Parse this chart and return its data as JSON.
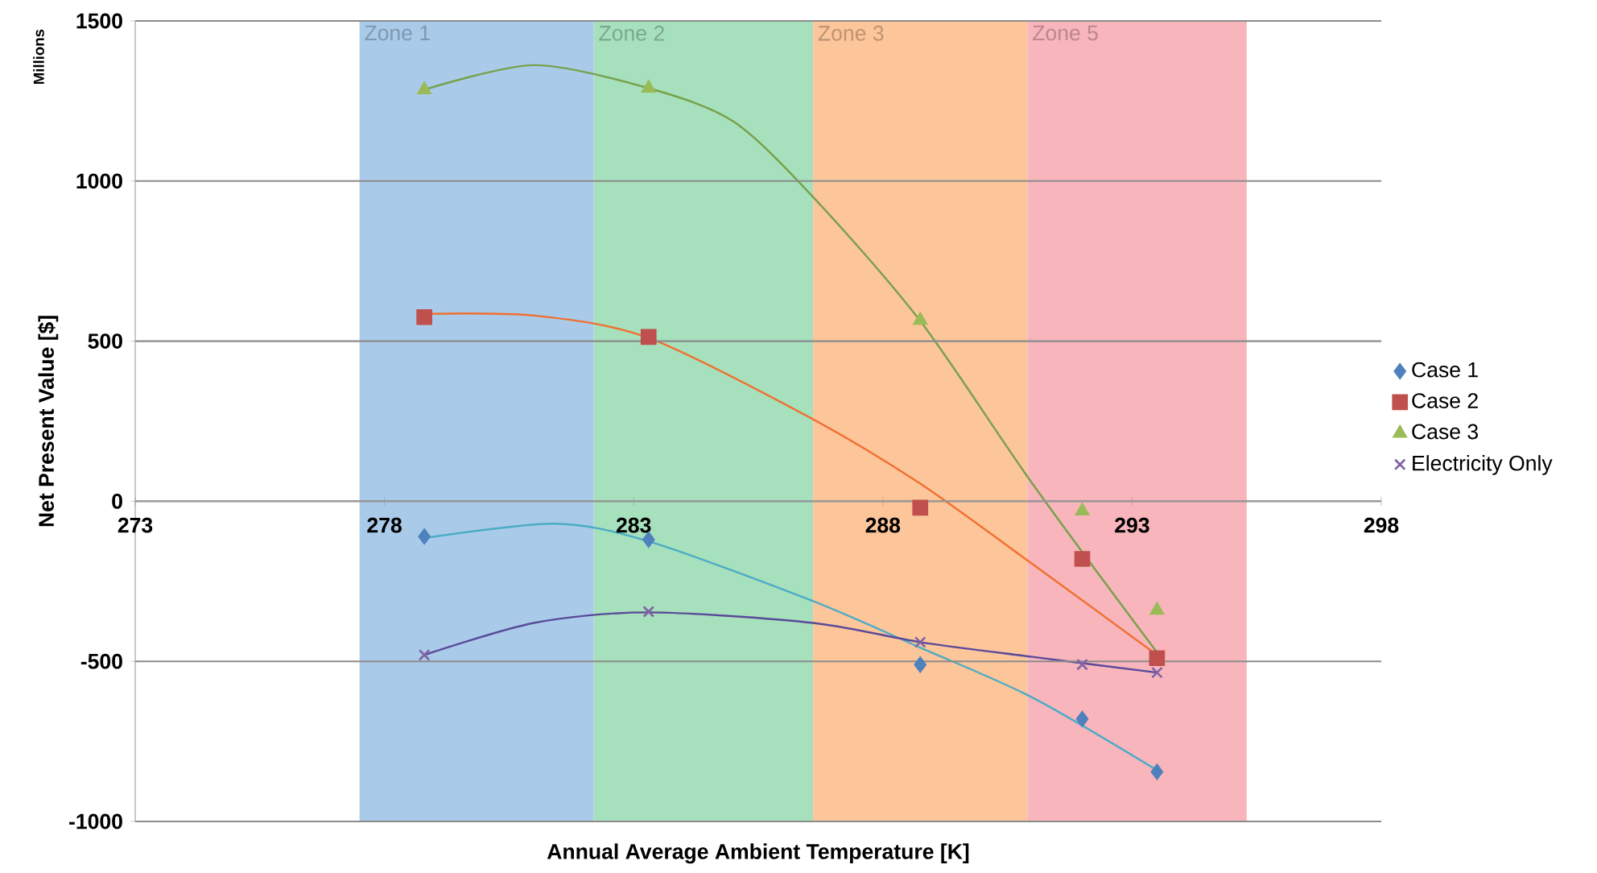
{
  "chart_data": {
    "type": "scatter",
    "xlabel": "Annual Average Ambient Temperature [K]",
    "ylabel": "Net Present Value [$]",
    "annotations": [
      "Millions"
    ],
    "xlim": [
      273,
      298
    ],
    "ylim": [
      -1000,
      1500
    ],
    "xticks": [
      273,
      278,
      283,
      288,
      293,
      298
    ],
    "yticks": [
      -1000,
      -500,
      0,
      500,
      1000,
      1500
    ],
    "grid": "y",
    "legend": "right",
    "bands": [
      {
        "axis": "x",
        "from": 277.5,
        "to": 282.2,
        "label": "Zone 1",
        "color": "#a9cbe9"
      },
      {
        "axis": "x",
        "from": 282.2,
        "to": 286.6,
        "label": "Zone 2",
        "color": "#a6e0bc"
      },
      {
        "axis": "x",
        "from": 286.6,
        "to": 290.9,
        "label": "Zone 3",
        "color": "#fcc59a"
      },
      {
        "axis": "x",
        "from": 290.9,
        "to": 295.3,
        "label": "Zone 5",
        "color": "#f8b5bc"
      }
    ],
    "series": [
      {
        "name": "Case 1",
        "color": "#4f81bd",
        "marker": "diamond",
        "x": [
          278.8,
          283.3,
          288.75,
          292,
          293.5
        ],
        "values": [
          -110,
          -120,
          -510,
          -680,
          -845
        ]
      },
      {
        "name": "Case 2",
        "color": "#c0504d",
        "marker": "square",
        "x": [
          278.8,
          283.3,
          288.75,
          292,
          293.5
        ],
        "values": [
          575,
          513,
          -20,
          -180,
          -490
        ]
      },
      {
        "name": "Case 3",
        "color": "#9bbb59",
        "marker": "triangle",
        "x": [
          278.8,
          283.3,
          288.75,
          292,
          293.5
        ],
        "values": [
          1285,
          1290,
          565,
          -30,
          -340
        ]
      },
      {
        "name": "Electricity Only",
        "color": "#8064a2",
        "marker": "cross",
        "x": [
          278.8,
          283.3,
          288.75,
          292,
          293.5
        ],
        "values": [
          -480,
          -345,
          -440,
          -510,
          -535
        ]
      },
      {
        "type": "line",
        "color": "#4bacc6",
        "x": [
          278.8,
          281.4,
          283.3,
          286.6,
          288.75,
          291,
          293.5
        ],
        "values": [
          -115,
          -70,
          -125,
          -312,
          -457,
          -613,
          -840
        ]
      },
      {
        "type": "line",
        "color": "#f07030",
        "x": [
          278.8,
          281,
          283.3,
          286.6,
          288.75,
          291,
          293.5
        ],
        "values": [
          585,
          580,
          510,
          256,
          55,
          -196,
          -480
        ]
      },
      {
        "type": "line",
        "color": "#77a04a",
        "x": [
          278.8,
          281,
          283.3,
          285,
          286.6,
          288.75,
          291,
          293.5
        ],
        "values": [
          1285,
          1362,
          1290,
          1186,
          950,
          563,
          55,
          -472
        ]
      },
      {
        "type": "line",
        "color": "#5a4a9a",
        "x": [
          278.8,
          281,
          283.3,
          286.6,
          288.75,
          291,
          293.5
        ],
        "values": [
          -480,
          -380,
          -347,
          -380,
          -440,
          -486,
          -535
        ]
      }
    ]
  }
}
